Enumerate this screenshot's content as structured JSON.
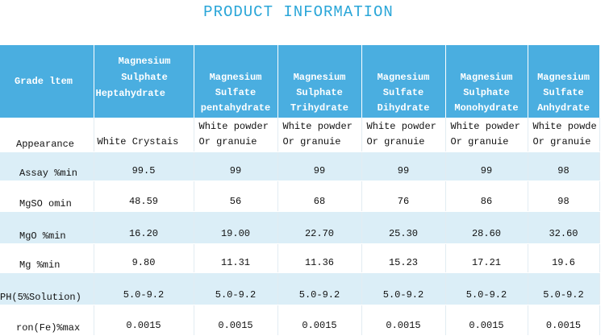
{
  "title": "PRODUCT INFORMATION",
  "header": {
    "grade_item": "Grade ltem",
    "columns": [
      [
        "Magnesium",
        "Sulphate",
        "Heptahydrate"
      ],
      [
        "Magnesium",
        "Sulfate",
        "pentahydrate"
      ],
      [
        "Magnesium",
        "Sulphate",
        "Trihydrate"
      ],
      [
        "Magnesium",
        "Sulfate",
        "Dihydrate"
      ],
      [
        "Magnesium",
        "Sulphate",
        "Monohydrate"
      ],
      [
        "Magnesium",
        "Sulfate",
        "Anhydrate"
      ]
    ]
  },
  "rows": [
    {
      "label": "Appearance",
      "values": [
        [
          "White Crystais"
        ],
        [
          "White powder",
          "Or granuie"
        ],
        [
          "White powder",
          "Or granuie"
        ],
        [
          "White powder",
          "Or granuie"
        ],
        [
          "White powder",
          "Or granuie"
        ],
        [
          "White powde",
          "Or granuie"
        ]
      ]
    },
    {
      "label": "Assay %min",
      "values": [
        [
          "99.5"
        ],
        [
          "99"
        ],
        [
          "99"
        ],
        [
          "99"
        ],
        [
          "99"
        ],
        [
          "98"
        ]
      ]
    },
    {
      "label": "MgSO omin",
      "values": [
        [
          "48.59"
        ],
        [
          "56"
        ],
        [
          "68"
        ],
        [
          "76"
        ],
        [
          "86"
        ],
        [
          "98"
        ]
      ]
    },
    {
      "label": "MgO %min",
      "values": [
        [
          "16.20"
        ],
        [
          "19.00"
        ],
        [
          "22.70"
        ],
        [
          "25.30"
        ],
        [
          "28.60"
        ],
        [
          "32.60"
        ]
      ]
    },
    {
      "label": "Mg %min",
      "values": [
        [
          "9.80"
        ],
        [
          "11.31"
        ],
        [
          "11.36"
        ],
        [
          "15.23"
        ],
        [
          "17.21"
        ],
        [
          "19.6"
        ]
      ]
    },
    {
      "label": "PH(5%Solution)",
      "values": [
        [
          "5.0-9.2"
        ],
        [
          "5.0-9.2"
        ],
        [
          "5.0-9.2"
        ],
        [
          "5.0-9.2"
        ],
        [
          "5.0-9.2"
        ],
        [
          "5.0-9.2"
        ]
      ]
    },
    {
      "label": "ron(Fe)%max",
      "values": [
        [
          "0.0015"
        ],
        [
          "0.0015"
        ],
        [
          "0.0015"
        ],
        [
          "0.0015"
        ],
        [
          "0.0015"
        ],
        [
          "0.0015"
        ]
      ]
    }
  ]
}
